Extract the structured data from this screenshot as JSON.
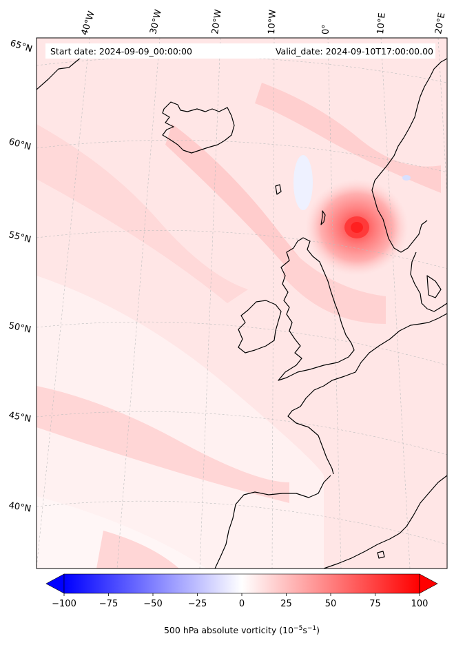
{
  "header": {
    "start_date": "Start date: 2024-09-09_00:00:00",
    "valid_date": "Valid_date: 2024-09-10T17:00:00.00"
  },
  "longitude_labels": [
    "40°W",
    "30°W",
    "20°W",
    "10°W",
    "0°",
    "10°E",
    "20°E"
  ],
  "latitude_labels": [
    "65°N",
    "60°N",
    "55°N",
    "50°N",
    "45°N",
    "40°N"
  ],
  "colorbar": {
    "label_main": "500 hPa absolute vorticity (10",
    "label_exp1": "−5",
    "label_mid": "s",
    "label_exp2": "−1",
    "label_end": ")",
    "ticks": [
      "−100",
      "−75",
      "−50",
      "−25",
      "0",
      "25",
      "50",
      "75",
      "100"
    ],
    "min": -100,
    "max": 100,
    "colormap": "bwr",
    "extend": "both"
  },
  "colors": {
    "negative": "#0000ff",
    "zero": "#ffffff",
    "positive": "#ff0000",
    "coastline": "#000000"
  }
}
